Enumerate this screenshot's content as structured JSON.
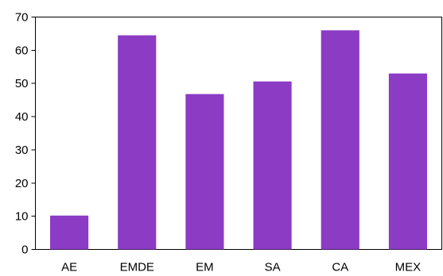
{
  "chart_data": {
    "type": "bar",
    "categories": [
      "AE",
      "EMDE",
      "EM",
      "SA",
      "CA",
      "MEX"
    ],
    "values": [
      10.2,
      64.5,
      46.8,
      50.6,
      66.0,
      53.0
    ],
    "title": "",
    "xlabel": "",
    "ylabel": "",
    "ylim": [
      0,
      70
    ],
    "yticks": [
      0,
      10,
      20,
      30,
      40,
      50,
      60,
      70
    ],
    "grid": false,
    "legend": "none",
    "bar_color": "#8B3BC4"
  }
}
